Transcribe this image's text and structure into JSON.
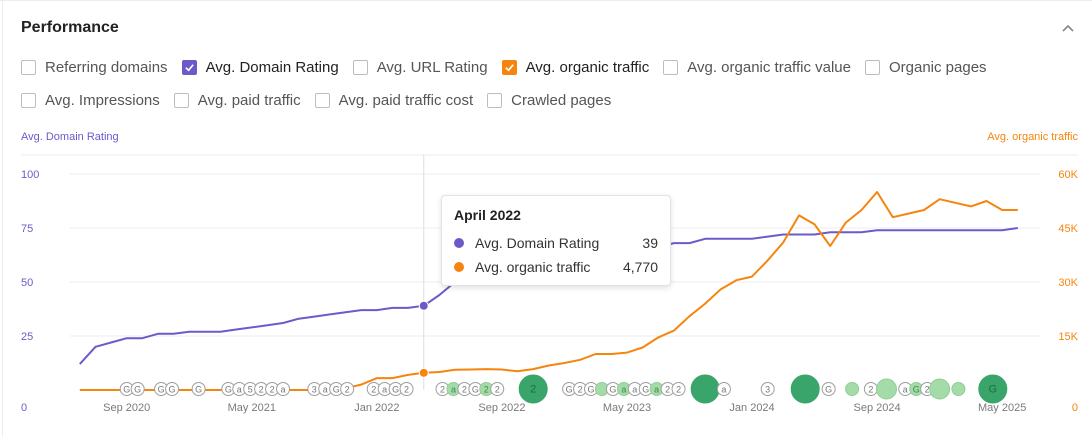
{
  "title": "Performance",
  "checkboxes": [
    {
      "label": "Referring domains",
      "checked": false,
      "color": ""
    },
    {
      "label": "Avg. Domain Rating",
      "checked": true,
      "color": "#6b5bc9"
    },
    {
      "label": "Avg. URL Rating",
      "checked": false,
      "color": ""
    },
    {
      "label": "Avg. organic traffic",
      "checked": true,
      "color": "#f5850e"
    },
    {
      "label": "Avg. organic traffic value",
      "checked": false,
      "color": ""
    },
    {
      "label": "Organic pages",
      "checked": false,
      "color": ""
    },
    {
      "label": "Avg. Impressions",
      "checked": false,
      "color": ""
    },
    {
      "label": "Avg. paid traffic",
      "checked": false,
      "color": ""
    },
    {
      "label": "Avg. paid traffic cost",
      "checked": false,
      "color": ""
    },
    {
      "label": "Crawled pages",
      "checked": false,
      "color": ""
    }
  ],
  "tooltip": {
    "title": "April 2022",
    "rows": [
      {
        "name": "Avg. Domain Rating",
        "value": "39",
        "color": "#6b5bc9"
      },
      {
        "name": "Avg. organic traffic",
        "value": "4,770",
        "color": "#f5850e"
      }
    ]
  },
  "chart_data": {
    "type": "line",
    "left_axis_title": "Avg. Domain Rating",
    "right_axis_title": "Avg. organic traffic",
    "left_ticks": [
      "100",
      "75",
      "50",
      "25",
      "0"
    ],
    "left_tick_values": [
      100,
      75,
      50,
      25,
      0
    ],
    "right_ticks": [
      "60K",
      "45K",
      "30K",
      "15K",
      "0"
    ],
    "right_tick_values": [
      60000,
      45000,
      30000,
      15000,
      0
    ],
    "y_left_range": [
      0,
      100
    ],
    "y_right_range": [
      0,
      60000
    ],
    "x_labels": [
      "Sep 2020",
      "May 2021",
      "Jan 2022",
      "Sep 2022",
      "May 2023",
      "Jan 2024",
      "Sep 2024",
      "May 2025"
    ],
    "x_label_months": [
      9,
      17,
      25,
      33,
      41,
      49,
      57,
      65
    ],
    "x_month_origin": "2020-01",
    "x_range_months": [
      5.5,
      65.5
    ],
    "hover_month": 28,
    "colors": {
      "dr": "#6b5bc9",
      "traffic": "#f5850e",
      "annotation_dark": "#3aa56a",
      "annotation_light": "#a5dba8"
    },
    "series": [
      {
        "name": "Avg. Domain Rating",
        "axis": "left",
        "x": [
          6,
          7,
          8,
          9,
          10,
          11,
          12,
          13,
          14,
          15,
          16,
          17,
          18,
          19,
          20,
          21,
          22,
          23,
          24,
          25,
          26,
          27,
          28,
          29,
          30,
          31,
          32,
          33,
          34,
          35,
          36,
          37,
          38,
          39,
          40,
          41,
          42,
          43,
          44,
          45,
          46,
          47,
          48,
          49,
          50,
          51,
          52,
          53,
          54,
          55,
          56,
          57,
          58,
          59,
          60,
          61,
          62,
          63,
          64,
          65,
          66
        ],
        "values": [
          12,
          20,
          22,
          24,
          24,
          26,
          26,
          27,
          27,
          27,
          28,
          29,
          30,
          31,
          33,
          34,
          35,
          36,
          37,
          37,
          38,
          38,
          39,
          44,
          50,
          56,
          58,
          59,
          60,
          62,
          62,
          63,
          63,
          64,
          64,
          65,
          66,
          66,
          68,
          68,
          70,
          70,
          70,
          70,
          71,
          72,
          72,
          72,
          73,
          73,
          73,
          74,
          74,
          74,
          74,
          74,
          74,
          74,
          74,
          74,
          75
        ]
      },
      {
        "name": "Avg. organic traffic",
        "axis": "right",
        "x": [
          6,
          7,
          8,
          9,
          10,
          11,
          12,
          13,
          14,
          15,
          16,
          17,
          18,
          19,
          20,
          21,
          22,
          23,
          24,
          25,
          26,
          27,
          28,
          29,
          30,
          31,
          32,
          33,
          34,
          35,
          36,
          37,
          38,
          39,
          40,
          41,
          42,
          43,
          44,
          45,
          46,
          47,
          48,
          49,
          50,
          51,
          52,
          53,
          54,
          55,
          56,
          57,
          58,
          59,
          60,
          61,
          62,
          63,
          64,
          65,
          66
        ],
        "values": [
          0,
          0,
          0,
          0,
          0,
          0,
          0,
          0,
          0,
          0,
          0,
          0,
          0,
          0,
          0,
          0,
          0,
          500,
          1500,
          3300,
          3300,
          4200,
          4770,
          5000,
          5600,
          5700,
          5800,
          5700,
          5200,
          5800,
          6800,
          7500,
          8400,
          10000,
          10000,
          10400,
          11800,
          14600,
          16500,
          20500,
          24000,
          28000,
          30500,
          31500,
          36000,
          41000,
          48500,
          46000,
          40000,
          46500,
          50000,
          55000,
          48000,
          49000,
          50000,
          53000,
          52000,
          51000,
          52500,
          50000,
          50000
        ]
      }
    ],
    "annotations": [
      {
        "m": 9,
        "label": "G",
        "size": "s",
        "style": "outline"
      },
      {
        "m": 9.7,
        "label": "G",
        "size": "s",
        "style": "outline"
      },
      {
        "m": 11.2,
        "label": "G",
        "size": "s",
        "style": "outline"
      },
      {
        "m": 11.9,
        "label": "G",
        "size": "s",
        "style": "outline"
      },
      {
        "m": 13.6,
        "label": "G",
        "size": "s",
        "style": "outline"
      },
      {
        "m": 15.5,
        "label": "G",
        "size": "s",
        "style": "outline"
      },
      {
        "m": 16.2,
        "label": "a",
        "size": "s",
        "style": "outline"
      },
      {
        "m": 16.9,
        "label": "5",
        "size": "s",
        "style": "outline"
      },
      {
        "m": 17.6,
        "label": "2",
        "size": "s",
        "style": "outline"
      },
      {
        "m": 18.3,
        "label": "2",
        "size": "s",
        "style": "outline"
      },
      {
        "m": 19.0,
        "label": "a",
        "size": "s",
        "style": "outline"
      },
      {
        "m": 21.0,
        "label": "3",
        "size": "s",
        "style": "outline"
      },
      {
        "m": 21.7,
        "label": "a",
        "size": "s",
        "style": "outline"
      },
      {
        "m": 22.4,
        "label": "G",
        "size": "s",
        "style": "outline"
      },
      {
        "m": 23.1,
        "label": "2",
        "size": "s",
        "style": "outline"
      },
      {
        "m": 24.8,
        "label": "2",
        "size": "s",
        "style": "outline"
      },
      {
        "m": 25.5,
        "label": "a",
        "size": "s",
        "style": "outline"
      },
      {
        "m": 26.2,
        "label": "G",
        "size": "s",
        "style": "outline"
      },
      {
        "m": 26.9,
        "label": "2",
        "size": "s",
        "style": "outline"
      },
      {
        "m": 29.2,
        "label": "2",
        "size": "s",
        "style": "outline"
      },
      {
        "m": 29.9,
        "label": "a",
        "size": "s",
        "style": "light"
      },
      {
        "m": 30.6,
        "label": "2",
        "size": "s",
        "style": "outline"
      },
      {
        "m": 31.3,
        "label": "G",
        "size": "s",
        "style": "outline"
      },
      {
        "m": 32.0,
        "label": "2",
        "size": "s",
        "style": "light"
      },
      {
        "m": 32.7,
        "label": "2",
        "size": "s",
        "style": "outline"
      },
      {
        "m": 35.0,
        "label": "2",
        "size": "l",
        "style": "dark"
      },
      {
        "m": 37.3,
        "label": "G",
        "size": "s",
        "style": "outline"
      },
      {
        "m": 38.0,
        "label": "2",
        "size": "s",
        "style": "outline"
      },
      {
        "m": 38.7,
        "label": "G",
        "size": "s",
        "style": "outline"
      },
      {
        "m": 39.4,
        "label": "",
        "size": "s",
        "style": "light"
      },
      {
        "m": 40.1,
        "label": "G",
        "size": "s",
        "style": "outline"
      },
      {
        "m": 40.8,
        "label": "a",
        "size": "s",
        "style": "light"
      },
      {
        "m": 41.5,
        "label": "a",
        "size": "s",
        "style": "outline"
      },
      {
        "m": 42.2,
        "label": "G",
        "size": "s",
        "style": "outline"
      },
      {
        "m": 42.9,
        "label": "a",
        "size": "s",
        "style": "light"
      },
      {
        "m": 43.6,
        "label": "2",
        "size": "s",
        "style": "outline"
      },
      {
        "m": 44.3,
        "label": "2",
        "size": "s",
        "style": "outline"
      },
      {
        "m": 46.0,
        "label": "",
        "size": "l",
        "style": "dark"
      },
      {
        "m": 47.2,
        "label": "a",
        "size": "s",
        "style": "outline"
      },
      {
        "m": 50.0,
        "label": "3",
        "size": "s",
        "style": "outline"
      },
      {
        "m": 52.4,
        "label": "",
        "size": "l",
        "style": "dark"
      },
      {
        "m": 53.9,
        "label": "G",
        "size": "s",
        "style": "outline"
      },
      {
        "m": 55.4,
        "label": "",
        "size": "s",
        "style": "light"
      },
      {
        "m": 56.6,
        "label": "2",
        "size": "s",
        "style": "outline"
      },
      {
        "m": 57.6,
        "label": "",
        "size": "m",
        "style": "light"
      },
      {
        "m": 58.8,
        "label": "a",
        "size": "s",
        "style": "outline"
      },
      {
        "m": 59.5,
        "label": "G",
        "size": "s",
        "style": "light"
      },
      {
        "m": 60.2,
        "label": "2",
        "size": "s",
        "style": "outline"
      },
      {
        "m": 61.0,
        "label": "",
        "size": "m",
        "style": "light"
      },
      {
        "m": 62.2,
        "label": "",
        "size": "s",
        "style": "light"
      },
      {
        "m": 64.4,
        "label": "G",
        "size": "l",
        "style": "dark"
      }
    ]
  }
}
